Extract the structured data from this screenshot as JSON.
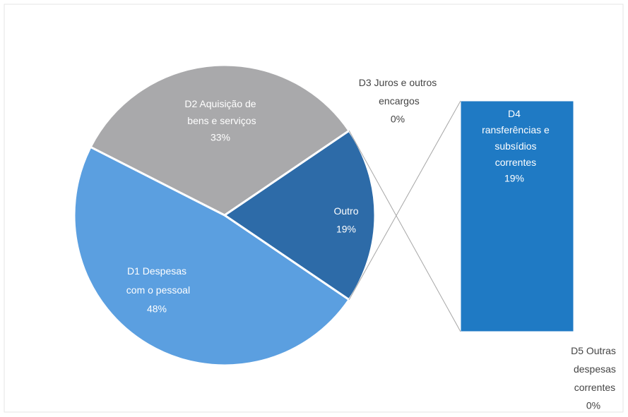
{
  "chart_data": {
    "type": "pie_of_bar",
    "pie": {
      "categories": [
        "D1 Despesas com o pessoal",
        "D2 Aquisição de bens e serviços",
        "Outro"
      ],
      "values": [
        48,
        33,
        19
      ],
      "value_labels": [
        "48%",
        "33%",
        "19%"
      ],
      "colors": [
        "#5b9fe0",
        "#a9a9ab",
        "#2d6ba8"
      ]
    },
    "bar": {
      "categories": [
        "D3 Juros e outros encargos",
        "D4 ransferências e subsídios correntes",
        "D5 Outras despesas correntes"
      ],
      "values": [
        0,
        19,
        0
      ],
      "value_labels": [
        "0%",
        "19%",
        "0%"
      ],
      "colors": [
        "#1f7ac4",
        "#1f7ac4",
        "#1f7ac4"
      ]
    }
  }
}
